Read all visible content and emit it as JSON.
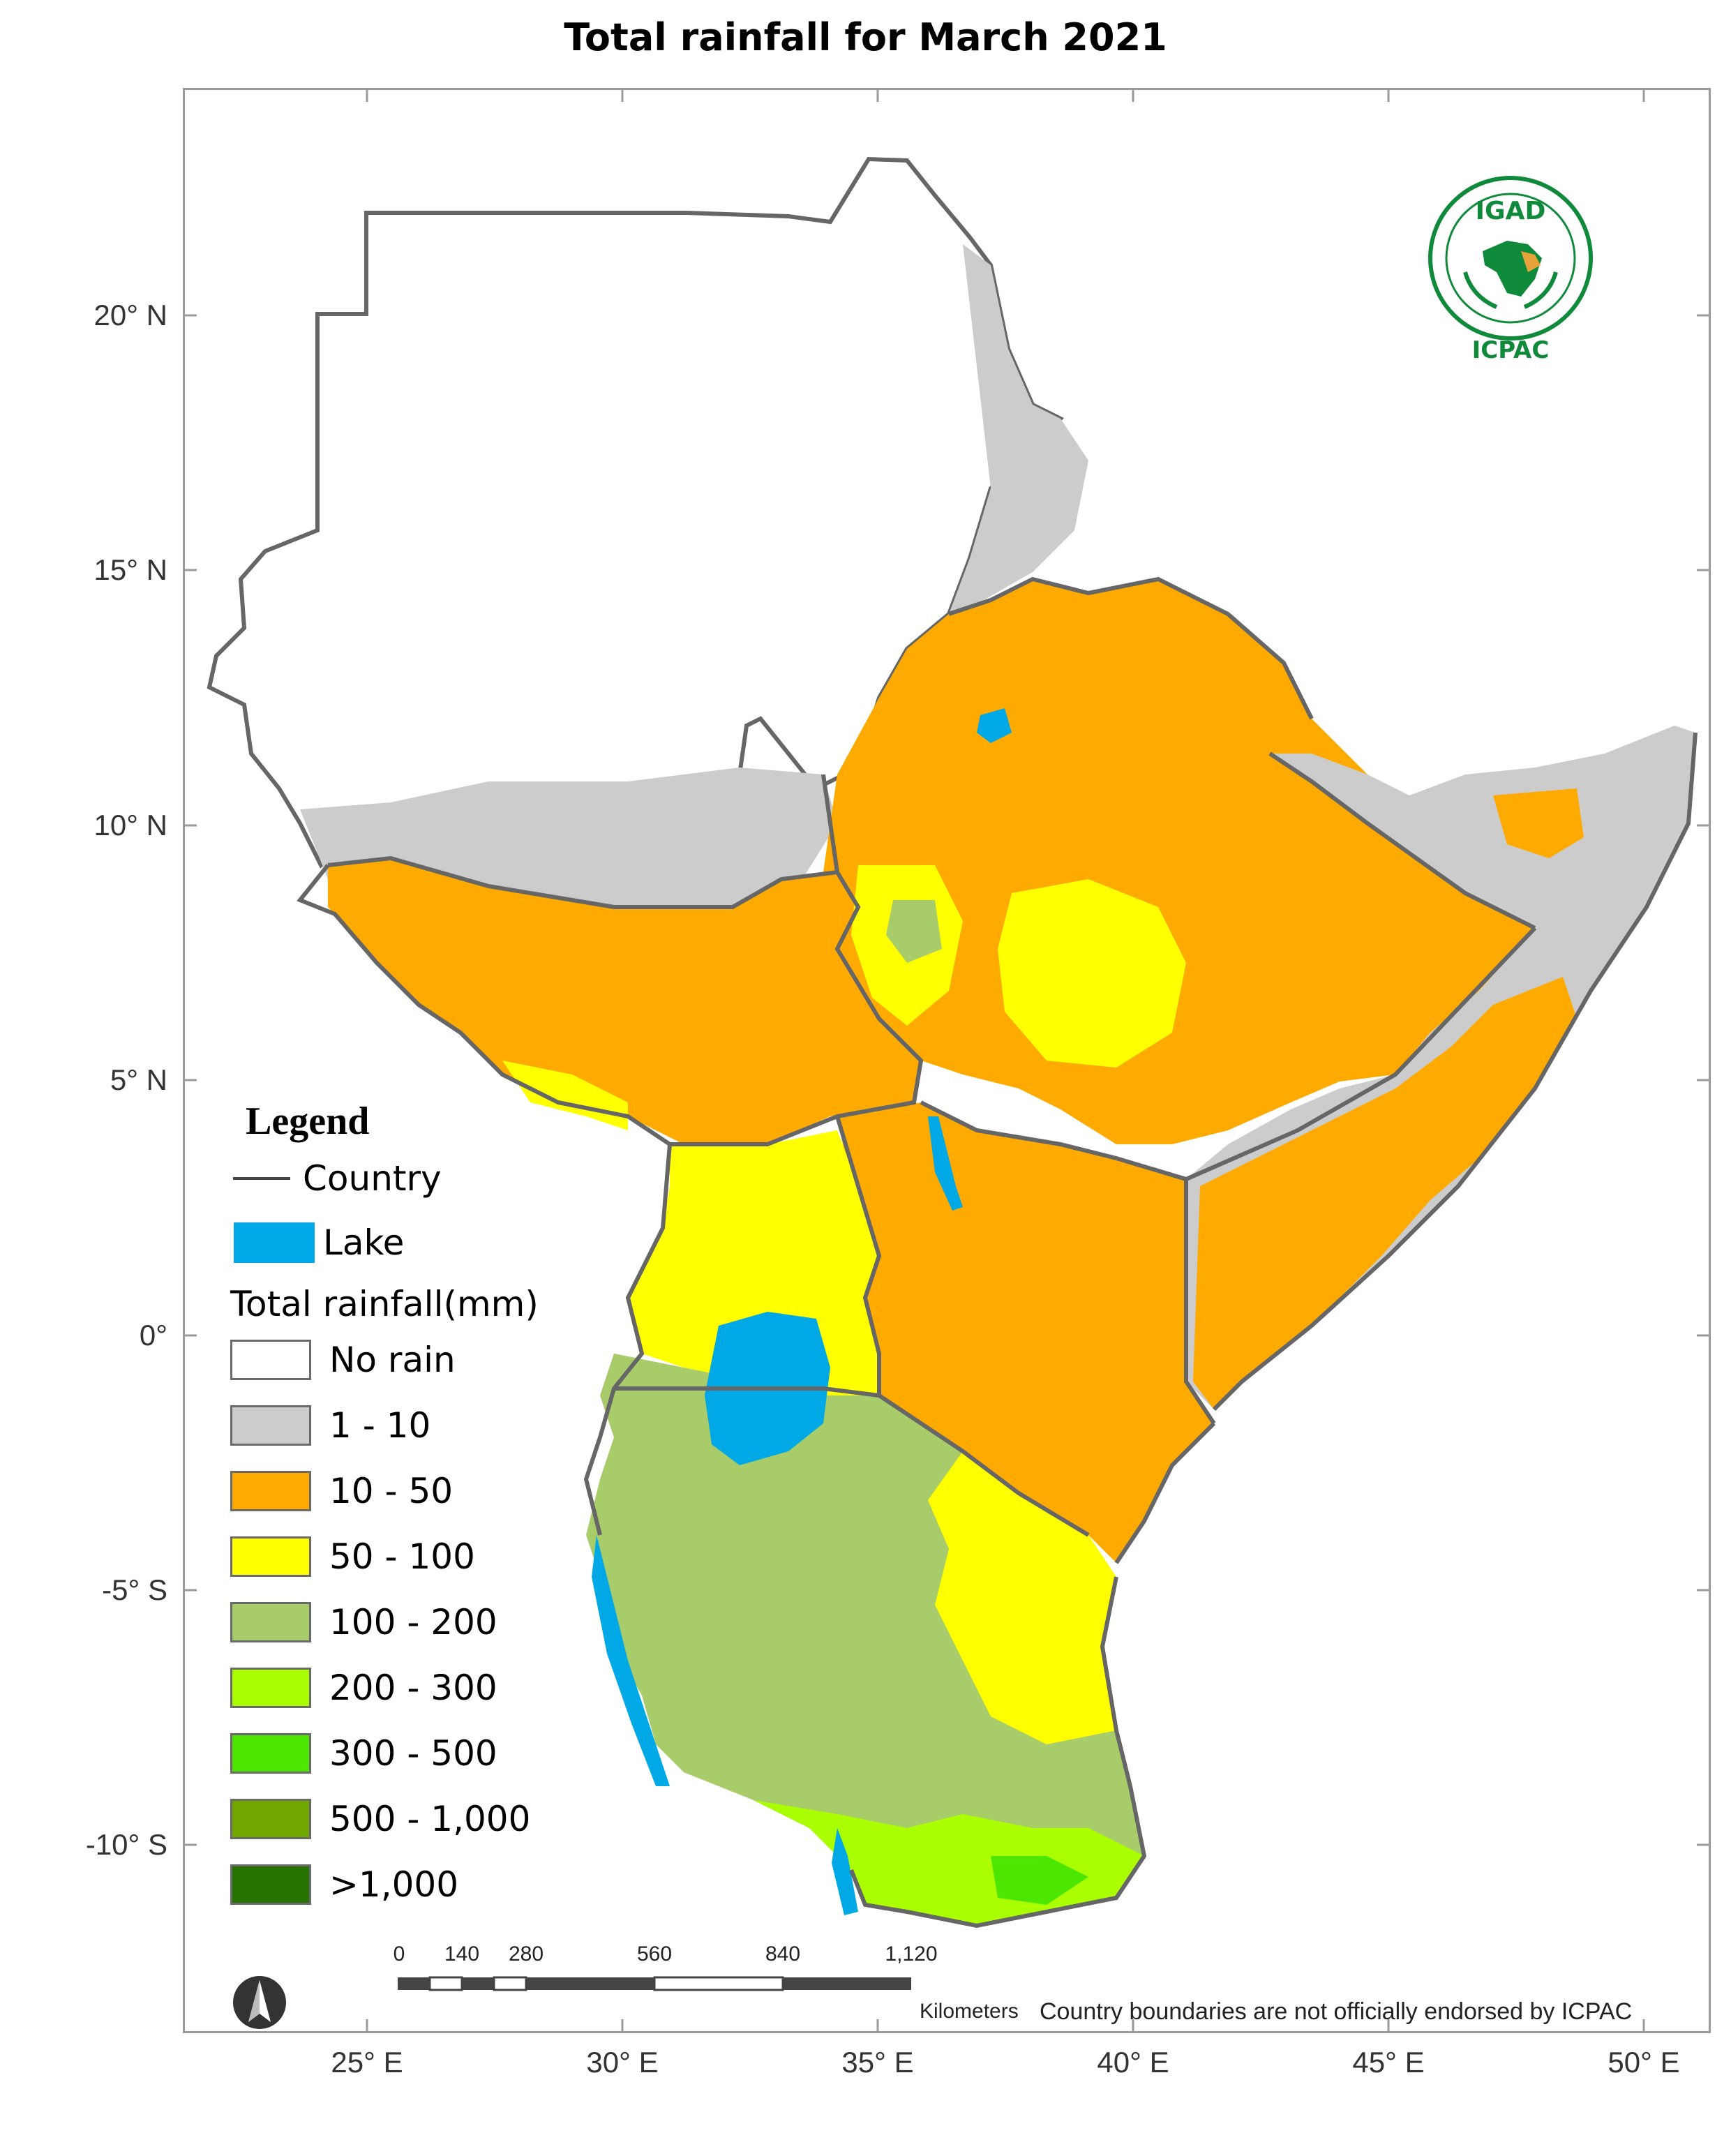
{
  "title": "Total rainfall for March 2021",
  "axes": {
    "longitude_labels": [
      "25° E",
      "30° E",
      "35° E",
      "40° E",
      "45° E",
      "50° E"
    ],
    "latitude_labels": [
      "20° N",
      "15° N",
      "10° N",
      "5° N",
      "0°",
      "-5° S",
      "-10° S"
    ]
  },
  "legend": {
    "title": "Legend",
    "country_label": "Country",
    "lake_label": "Lake",
    "rainfall_heading": "Total rainfall(mm)",
    "classes": [
      {
        "label": "No rain",
        "color": "#ffffff"
      },
      {
        "label": "1 - 10",
        "color": "#cccccc"
      },
      {
        "label": "10 - 50",
        "color": "#ffaa00"
      },
      {
        "label": "50 - 100",
        "color": "#ffff00"
      },
      {
        "label": "100 - 200",
        "color": "#a9cc6a"
      },
      {
        "label": "200 - 300",
        "color": "#aaff00"
      },
      {
        "label": "300 - 500",
        "color": "#4ce600"
      },
      {
        "label": "500 - 1,000",
        "color": "#70a800"
      },
      {
        "label": ">1,000",
        "color": "#267300"
      }
    ],
    "lake_color": "#00a9e6"
  },
  "logo": {
    "acronym": "IGAD",
    "center": "ICPAC"
  },
  "scale_bar": {
    "ticks": [
      "0",
      "140",
      "280",
      "560",
      "840",
      "1,120"
    ],
    "unit": "Kilometers"
  },
  "disclaimer": "Country boundaries are not officially endorsed by ICPAC",
  "icons": {
    "north_arrow": "north-arrow-icon",
    "logo": "igad-logo-icon"
  }
}
